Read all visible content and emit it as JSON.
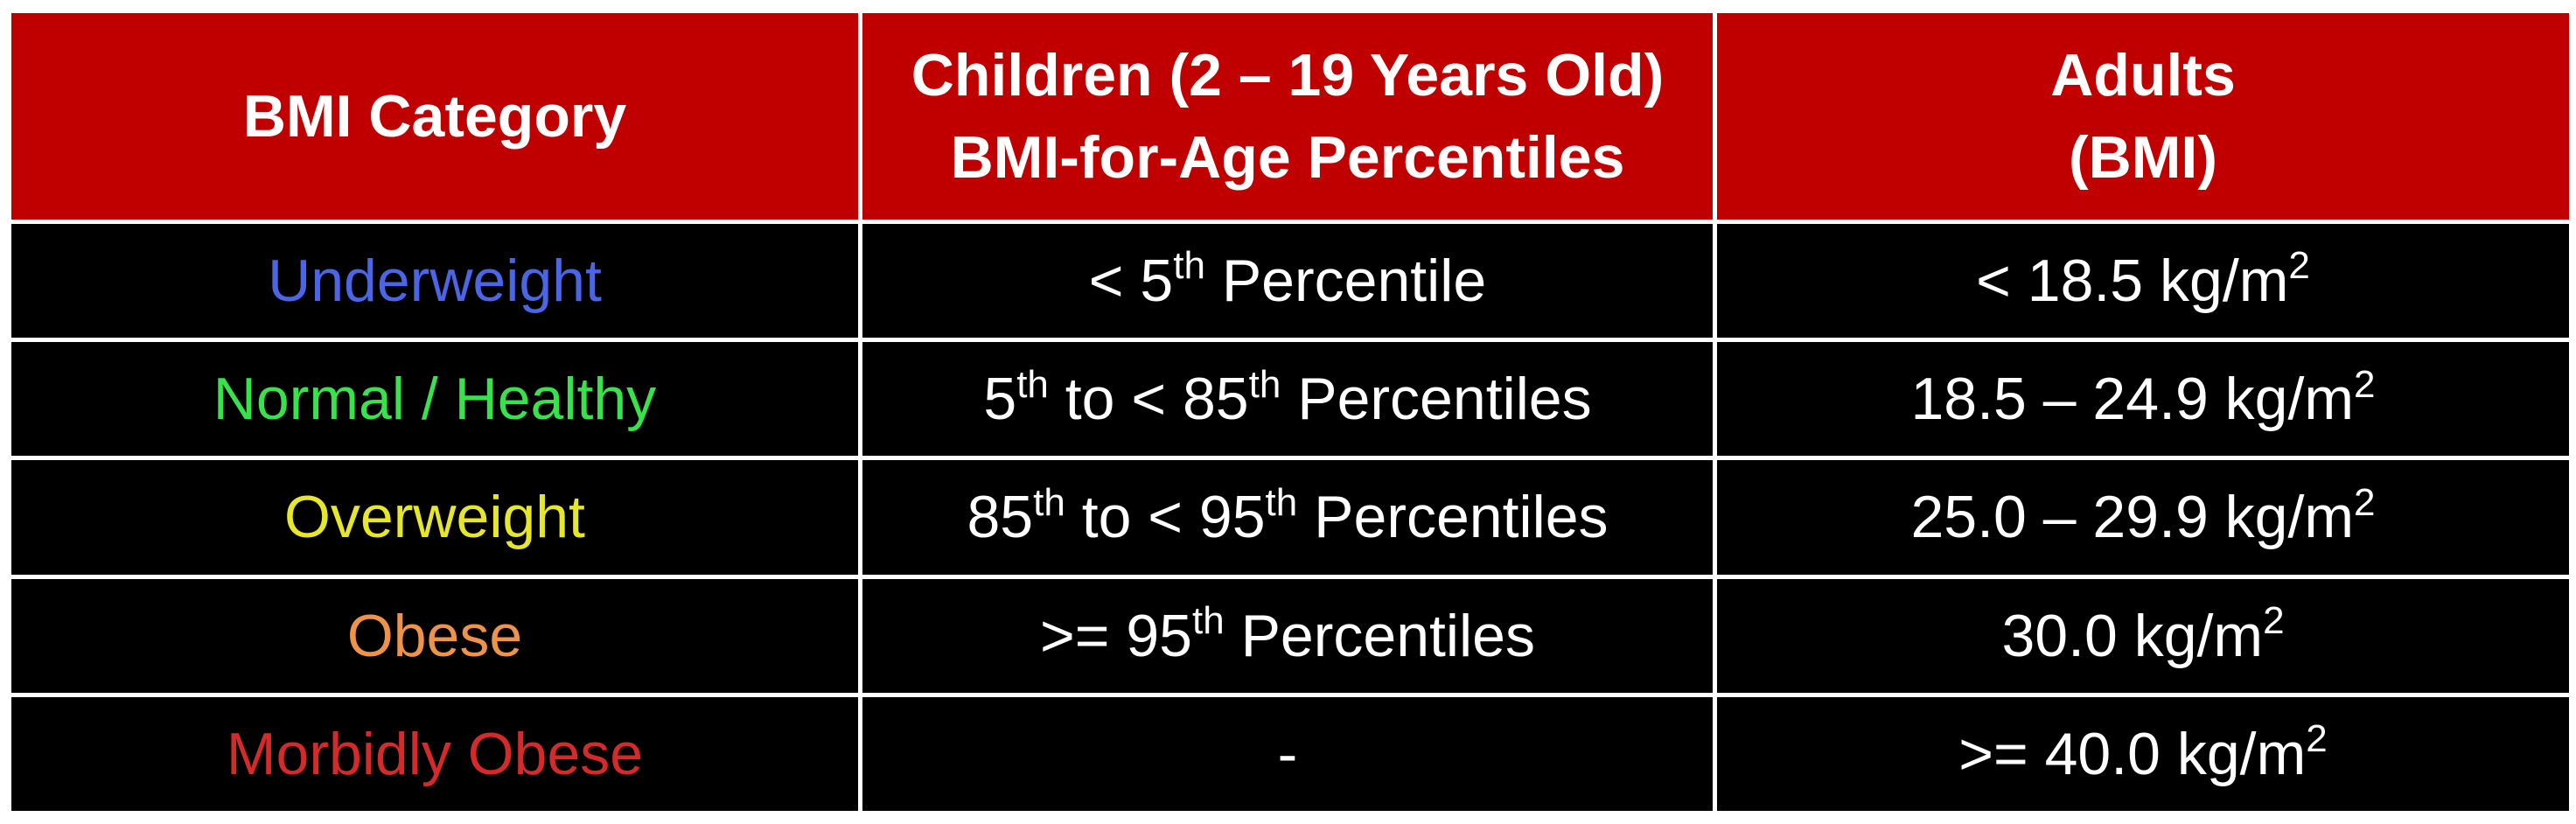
{
  "header": {
    "category": "BMI Category",
    "children_line1": "Children (2 – 19 Years Old)",
    "children_line2": "BMI-for-Age Percentiles",
    "adults_line1": "Adults",
    "adults_line2": "(BMI)"
  },
  "rows": [
    {
      "category": "Underweight",
      "category_color": "#4a66e6",
      "children": {
        "a_pre": "< 5",
        "a_sup": "th",
        "a_post": " Percentile",
        "b_pre": "",
        "b_sup": "",
        "b_post": ""
      },
      "adults": {
        "pre": "< 18.5 kg/m",
        "sup": "2"
      }
    },
    {
      "category": "Normal / Healthy",
      "category_color": "#38e24a",
      "children": {
        "a_pre": "5",
        "a_sup": "th",
        "a_post": " to < 85",
        "b_pre": "",
        "b_sup": "th",
        "b_post": " Percentiles"
      },
      "adults": {
        "pre": "18.5 – 24.9 kg/m",
        "sup": "2"
      }
    },
    {
      "category": "Overweight",
      "category_color": "#e6e62a",
      "children": {
        "a_pre": "85",
        "a_sup": "th",
        "a_post": " to < 95",
        "b_pre": "",
        "b_sup": "th",
        "b_post": " Percentiles"
      },
      "adults": {
        "pre": "25.0 – 29.9 kg/m",
        "sup": "2"
      }
    },
    {
      "category": "Obese",
      "category_color": "#f0934a",
      "children": {
        "a_pre": ">= 95",
        "a_sup": "th",
        "a_post": " Percentiles",
        "b_pre": "",
        "b_sup": "",
        "b_post": ""
      },
      "adults": {
        "pre": "30.0 kg/m",
        "sup": "2"
      }
    },
    {
      "category": "Morbidly Obese",
      "category_color": "#d42a2a",
      "children": {
        "a_pre": "-",
        "a_sup": "",
        "a_post": "",
        "b_pre": "",
        "b_sup": "",
        "b_post": ""
      },
      "adults": {
        "pre": ">= 40.0 kg/m",
        "sup": "2"
      }
    }
  ],
  "colors": {
    "header_background": "#c00000",
    "row_background": "#000000",
    "grid_lines": "#ffffff",
    "text": "#ffffff"
  }
}
